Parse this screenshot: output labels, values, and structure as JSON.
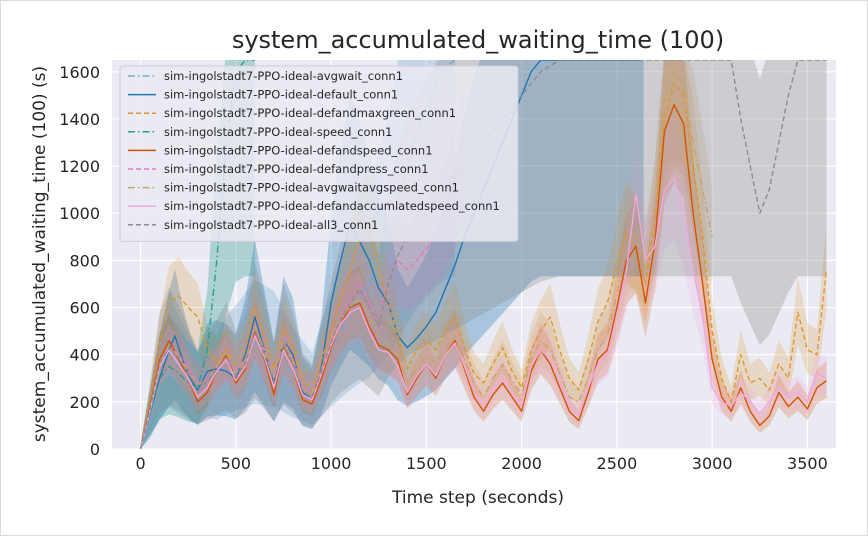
{
  "chart_data": {
    "type": "line",
    "title": "system_accumulated_waiting_time (100)",
    "xlabel": "Time step (seconds)",
    "ylabel": "system_accumulated_waiting_time (100) (s)",
    "xlim": [
      -150,
      3650
    ],
    "ylim": [
      0,
      1650
    ],
    "xticks": [
      0,
      500,
      1000,
      1500,
      2000,
      2500,
      3000,
      3500
    ],
    "yticks": [
      0,
      200,
      400,
      600,
      800,
      1000,
      1200,
      1400,
      1600
    ],
    "grid": true,
    "legend_position": "top-left",
    "series": [
      {
        "name": "sim-ingolstadt7-PPO-ideal-avgwait_conn1",
        "color": "#74a9cf",
        "dash": "dashdot",
        "band": "wide",
        "x": [
          0,
          50,
          100,
          150,
          200,
          250,
          300,
          350,
          400,
          450,
          500,
          600,
          700,
          800,
          900,
          1000,
          1100,
          1200,
          1300,
          1350,
          1400,
          1450,
          1500,
          1550,
          1600,
          1650
        ],
        "y": [
          0,
          120,
          300,
          420,
          350,
          300,
          250,
          320,
          300,
          350,
          380,
          450,
          420,
          320,
          250,
          420,
          580,
          700,
          900,
          1050,
          1200,
          1350,
          1450,
          1550,
          1620,
          1650
        ]
      },
      {
        "name": "sim-ingolstadt7-PPO-ideal-default_conn1",
        "color": "#1f77b4",
        "dash": "solid",
        "band": "wide",
        "x": [
          0,
          50,
          100,
          150,
          180,
          220,
          260,
          300,
          350,
          400,
          450,
          500,
          550,
          600,
          650,
          700,
          750,
          800,
          850,
          900,
          950,
          1000,
          1050,
          1100,
          1150,
          1200,
          1250,
          1300,
          1350,
          1400,
          1450,
          1500,
          1550,
          1600,
          1650,
          1700,
          1750,
          1800,
          1850,
          1900,
          1950,
          2000,
          2050,
          2100,
          2150,
          2200,
          2300,
          2400,
          2500,
          2550,
          2600,
          2620,
          2640
        ],
        "y": [
          0,
          150,
          300,
          420,
          480,
          380,
          300,
          250,
          330,
          340,
          330,
          300,
          400,
          560,
          420,
          280,
          460,
          400,
          240,
          210,
          350,
          620,
          800,
          960,
          880,
          800,
          680,
          620,
          480,
          430,
          470,
          520,
          580,
          680,
          780,
          900,
          1000,
          1100,
          1200,
          1300,
          1400,
          1500,
          1600,
          1650,
          1650,
          1650,
          1650,
          1650,
          1650,
          1650,
          1650,
          1650,
          1650
        ]
      },
      {
        "name": "sim-ingolstadt7-PPO-ideal-defandmaxgreen_conn1",
        "color": "#e0962a",
        "dash": "dashed",
        "band": "narrow",
        "x": [
          0,
          50,
          100,
          150,
          200,
          250,
          300,
          350,
          400,
          450,
          500,
          550,
          600,
          650,
          700,
          750,
          800,
          850,
          900,
          950,
          1000,
          1050,
          1100,
          1150,
          1200,
          1250,
          1300,
          1350,
          1400,
          1450,
          1500,
          1550,
          1600,
          1650,
          1700,
          1750,
          1800,
          1850,
          1900,
          1950,
          2000,
          2050,
          2100,
          2150,
          2200,
          2250,
          2300,
          2350,
          2400,
          2450,
          2500,
          2550,
          2600,
          2650,
          2700,
          2750,
          2800,
          2850,
          2900,
          2950,
          3000,
          3050,
          3100,
          3150,
          3200,
          3250,
          3300,
          3350,
          3400,
          3450,
          3500,
          3550,
          3600
        ],
        "y": [
          0,
          200,
          450,
          620,
          650,
          600,
          560,
          420,
          360,
          420,
          360,
          420,
          600,
          480,
          340,
          520,
          420,
          290,
          250,
          380,
          500,
          640,
          760,
          900,
          960,
          760,
          620,
          480,
          340,
          420,
          460,
          420,
          500,
          560,
          430,
          320,
          280,
          360,
          430,
          330,
          260,
          420,
          500,
          560,
          420,
          300,
          250,
          380,
          540,
          620,
          780,
          920,
          860,
          700,
          980,
          1400,
          1550,
          1500,
          1200,
          900,
          500,
          300,
          200,
          400,
          280,
          300,
          250,
          360,
          300,
          580,
          420,
          400,
          760
        ]
      },
      {
        "name": "sim-ingolstadt7-PPO-ideal-speed_conn1",
        "color": "#2a9d8f",
        "dash": "dashdot",
        "band": "wide",
        "x": [
          0,
          50,
          100,
          150,
          200,
          250,
          300,
          350,
          400,
          450,
          500,
          550,
          600
        ],
        "y": [
          0,
          150,
          300,
          350,
          320,
          280,
          260,
          420,
          800,
          1300,
          1600,
          1650,
          1650
        ]
      },
      {
        "name": "sim-ingolstadt7-PPO-ideal-defandspeed_conn1",
        "color": "#d35400",
        "dash": "solid",
        "band": "narrow",
        "x": [
          0,
          50,
          100,
          150,
          200,
          250,
          300,
          350,
          400,
          450,
          500,
          550,
          600,
          650,
          700,
          750,
          800,
          850,
          900,
          950,
          1000,
          1050,
          1100,
          1150,
          1200,
          1250,
          1300,
          1350,
          1400,
          1450,
          1500,
          1550,
          1600,
          1650,
          1700,
          1750,
          1800,
          1850,
          1900,
          1950,
          2000,
          2050,
          2100,
          2150,
          2200,
          2250,
          2300,
          2350,
          2400,
          2450,
          2500,
          2550,
          2600,
          2650,
          2700,
          2750,
          2800,
          2850,
          2900,
          2950,
          3000,
          3050,
          3100,
          3150,
          3200,
          3250,
          3300,
          3350,
          3400,
          3450,
          3500,
          3550,
          3600
        ],
        "y": [
          0,
          180,
          380,
          460,
          380,
          300,
          200,
          240,
          330,
          400,
          280,
          340,
          500,
          380,
          230,
          430,
          340,
          210,
          190,
          300,
          430,
          530,
          600,
          620,
          520,
          440,
          420,
          380,
          230,
          300,
          360,
          300,
          400,
          460,
          340,
          220,
          160,
          230,
          280,
          220,
          160,
          330,
          420,
          360,
          260,
          160,
          120,
          240,
          380,
          420,
          600,
          800,
          860,
          620,
          880,
          1350,
          1460,
          1380,
          1000,
          700,
          380,
          220,
          160,
          260,
          160,
          100,
          140,
          240,
          180,
          220,
          170,
          260,
          290
        ]
      },
      {
        "name": "sim-ingolstadt7-PPO-ideal-defandpress_conn1",
        "color": "#e377c2",
        "dash": "dashed",
        "band": "narrow",
        "x": [
          0,
          50,
          100,
          150,
          200,
          250,
          300,
          350,
          400,
          450,
          500,
          550,
          600,
          650,
          700,
          750,
          800,
          850,
          900,
          950,
          1000,
          1050,
          1100,
          1150,
          1200,
          1250,
          1300,
          1350,
          1400,
          1450,
          1500,
          1550,
          1600,
          1650,
          1700
        ],
        "y": [
          0,
          160,
          350,
          430,
          400,
          340,
          280,
          300,
          340,
          380,
          340,
          380,
          520,
          420,
          300,
          460,
          380,
          260,
          240,
          340,
          460,
          560,
          640,
          700,
          620,
          560,
          700,
          800,
          760,
          800,
          850,
          900,
          980,
          1100,
          1250
        ]
      },
      {
        "name": "sim-ingolstadt7-PPO-ideal-avgwaitavgspeed_conn1",
        "color": "#c8a26e",
        "dash": "dashdot",
        "band": "narrow",
        "x": [
          0,
          50,
          100,
          150,
          200,
          250,
          300,
          350,
          400,
          450,
          500,
          550,
          600,
          650,
          700,
          750,
          800,
          850,
          900,
          950,
          1000,
          1050,
          1100,
          1150,
          1200,
          1250,
          1300,
          1350,
          1400,
          1450,
          1500,
          1550,
          1600,
          1650,
          1700,
          1750,
          1800,
          1850,
          1900,
          1950,
          2000,
          2050,
          2100,
          2150,
          2200,
          2250,
          2300,
          2350,
          2400,
          2450,
          2500,
          2550,
          2600,
          2650,
          2700,
          2750,
          2800,
          2850,
          2900,
          2950,
          3000
        ],
        "y": [
          0,
          170,
          360,
          440,
          390,
          330,
          270,
          290,
          350,
          410,
          320,
          380,
          520,
          420,
          300,
          460,
          380,
          260,
          230,
          340,
          470,
          560,
          600,
          640,
          560,
          480,
          440,
          400,
          280,
          340,
          400,
          360,
          430,
          480,
          380,
          280,
          220,
          300,
          360,
          290,
          230,
          380,
          460,
          420,
          320,
          220,
          200,
          300,
          420,
          480,
          660,
          860,
          900,
          760,
          1000,
          1500,
          1600,
          1540,
          1300,
          1100,
          900
        ]
      },
      {
        "name": "sim-ingolstadt7-PPO-ideal-defandaccumlatedspeed_conn1",
        "color": "#f2a7e0",
        "dash": "solid",
        "band": "narrow",
        "x": [
          0,
          50,
          100,
          150,
          200,
          250,
          300,
          350,
          400,
          450,
          500,
          550,
          600,
          650,
          700,
          750,
          800,
          850,
          900,
          950,
          1000,
          1050,
          1100,
          1150,
          1200,
          1250,
          1300,
          1350,
          1400,
          1450,
          1500,
          1550,
          1600,
          1650,
          1700,
          1750,
          1800,
          1850,
          1900,
          1950,
          2000,
          2050,
          2100,
          2150,
          2200,
          2250,
          2300,
          2350,
          2400,
          2450,
          2500,
          2550,
          2600,
          2650,
          2700,
          2750,
          2800,
          2850,
          2900,
          2950,
          3000,
          3050,
          3100,
          3150,
          3200,
          3250,
          3300,
          3350,
          3400,
          3450,
          3500,
          3550,
          3600
        ],
        "y": [
          0,
          160,
          350,
          420,
          360,
          300,
          220,
          260,
          330,
          380,
          290,
          350,
          480,
          390,
          260,
          420,
          340,
          230,
          210,
          320,
          440,
          530,
          580,
          600,
          500,
          420,
          410,
          350,
          240,
          310,
          360,
          310,
          400,
          450,
          350,
          240,
          180,
          260,
          300,
          240,
          180,
          350,
          420,
          380,
          280,
          180,
          140,
          260,
          360,
          400,
          560,
          760,
          1080,
          800,
          860,
          1100,
          1150,
          1000,
          760,
          560,
          260,
          200,
          180,
          240,
          200,
          150,
          200,
          260,
          220,
          240,
          200,
          320,
          300
        ]
      },
      {
        "name": "sim-ingolstadt7-PPO-ideal-all3_conn1",
        "color": "#8c8c8c",
        "dash": "dashed",
        "band": "wide",
        "x": [
          0,
          50,
          100,
          150,
          200,
          250,
          300,
          350,
          400,
          450,
          500,
          550,
          600,
          650,
          700,
          750,
          800,
          850,
          900,
          950,
          1000,
          1050,
          1100,
          1150,
          1200,
          1250,
          1300,
          1350,
          1400,
          1500,
          1600,
          1700,
          1800,
          1900,
          2000,
          2100,
          2200,
          2300,
          2400,
          2500,
          2600,
          2650,
          2700,
          2800,
          2900,
          3000,
          3100,
          3150,
          3200,
          3250,
          3300,
          3350,
          3400,
          3450,
          3500,
          3550,
          3600
        ],
        "y": [
          0,
          170,
          360,
          430,
          380,
          320,
          260,
          290,
          340,
          390,
          310,
          360,
          500,
          400,
          280,
          440,
          360,
          250,
          220,
          330,
          450,
          550,
          620,
          680,
          600,
          520,
          700,
          820,
          900,
          1000,
          1100,
          1200,
          1300,
          1400,
          1500,
          1600,
          1650,
          1650,
          1650,
          1650,
          1650,
          1650,
          1650,
          1650,
          1650,
          1650,
          1650,
          1400,
          1200,
          1000,
          1100,
          1300,
          1500,
          1650,
          1650,
          1650,
          1650
        ]
      }
    ]
  }
}
